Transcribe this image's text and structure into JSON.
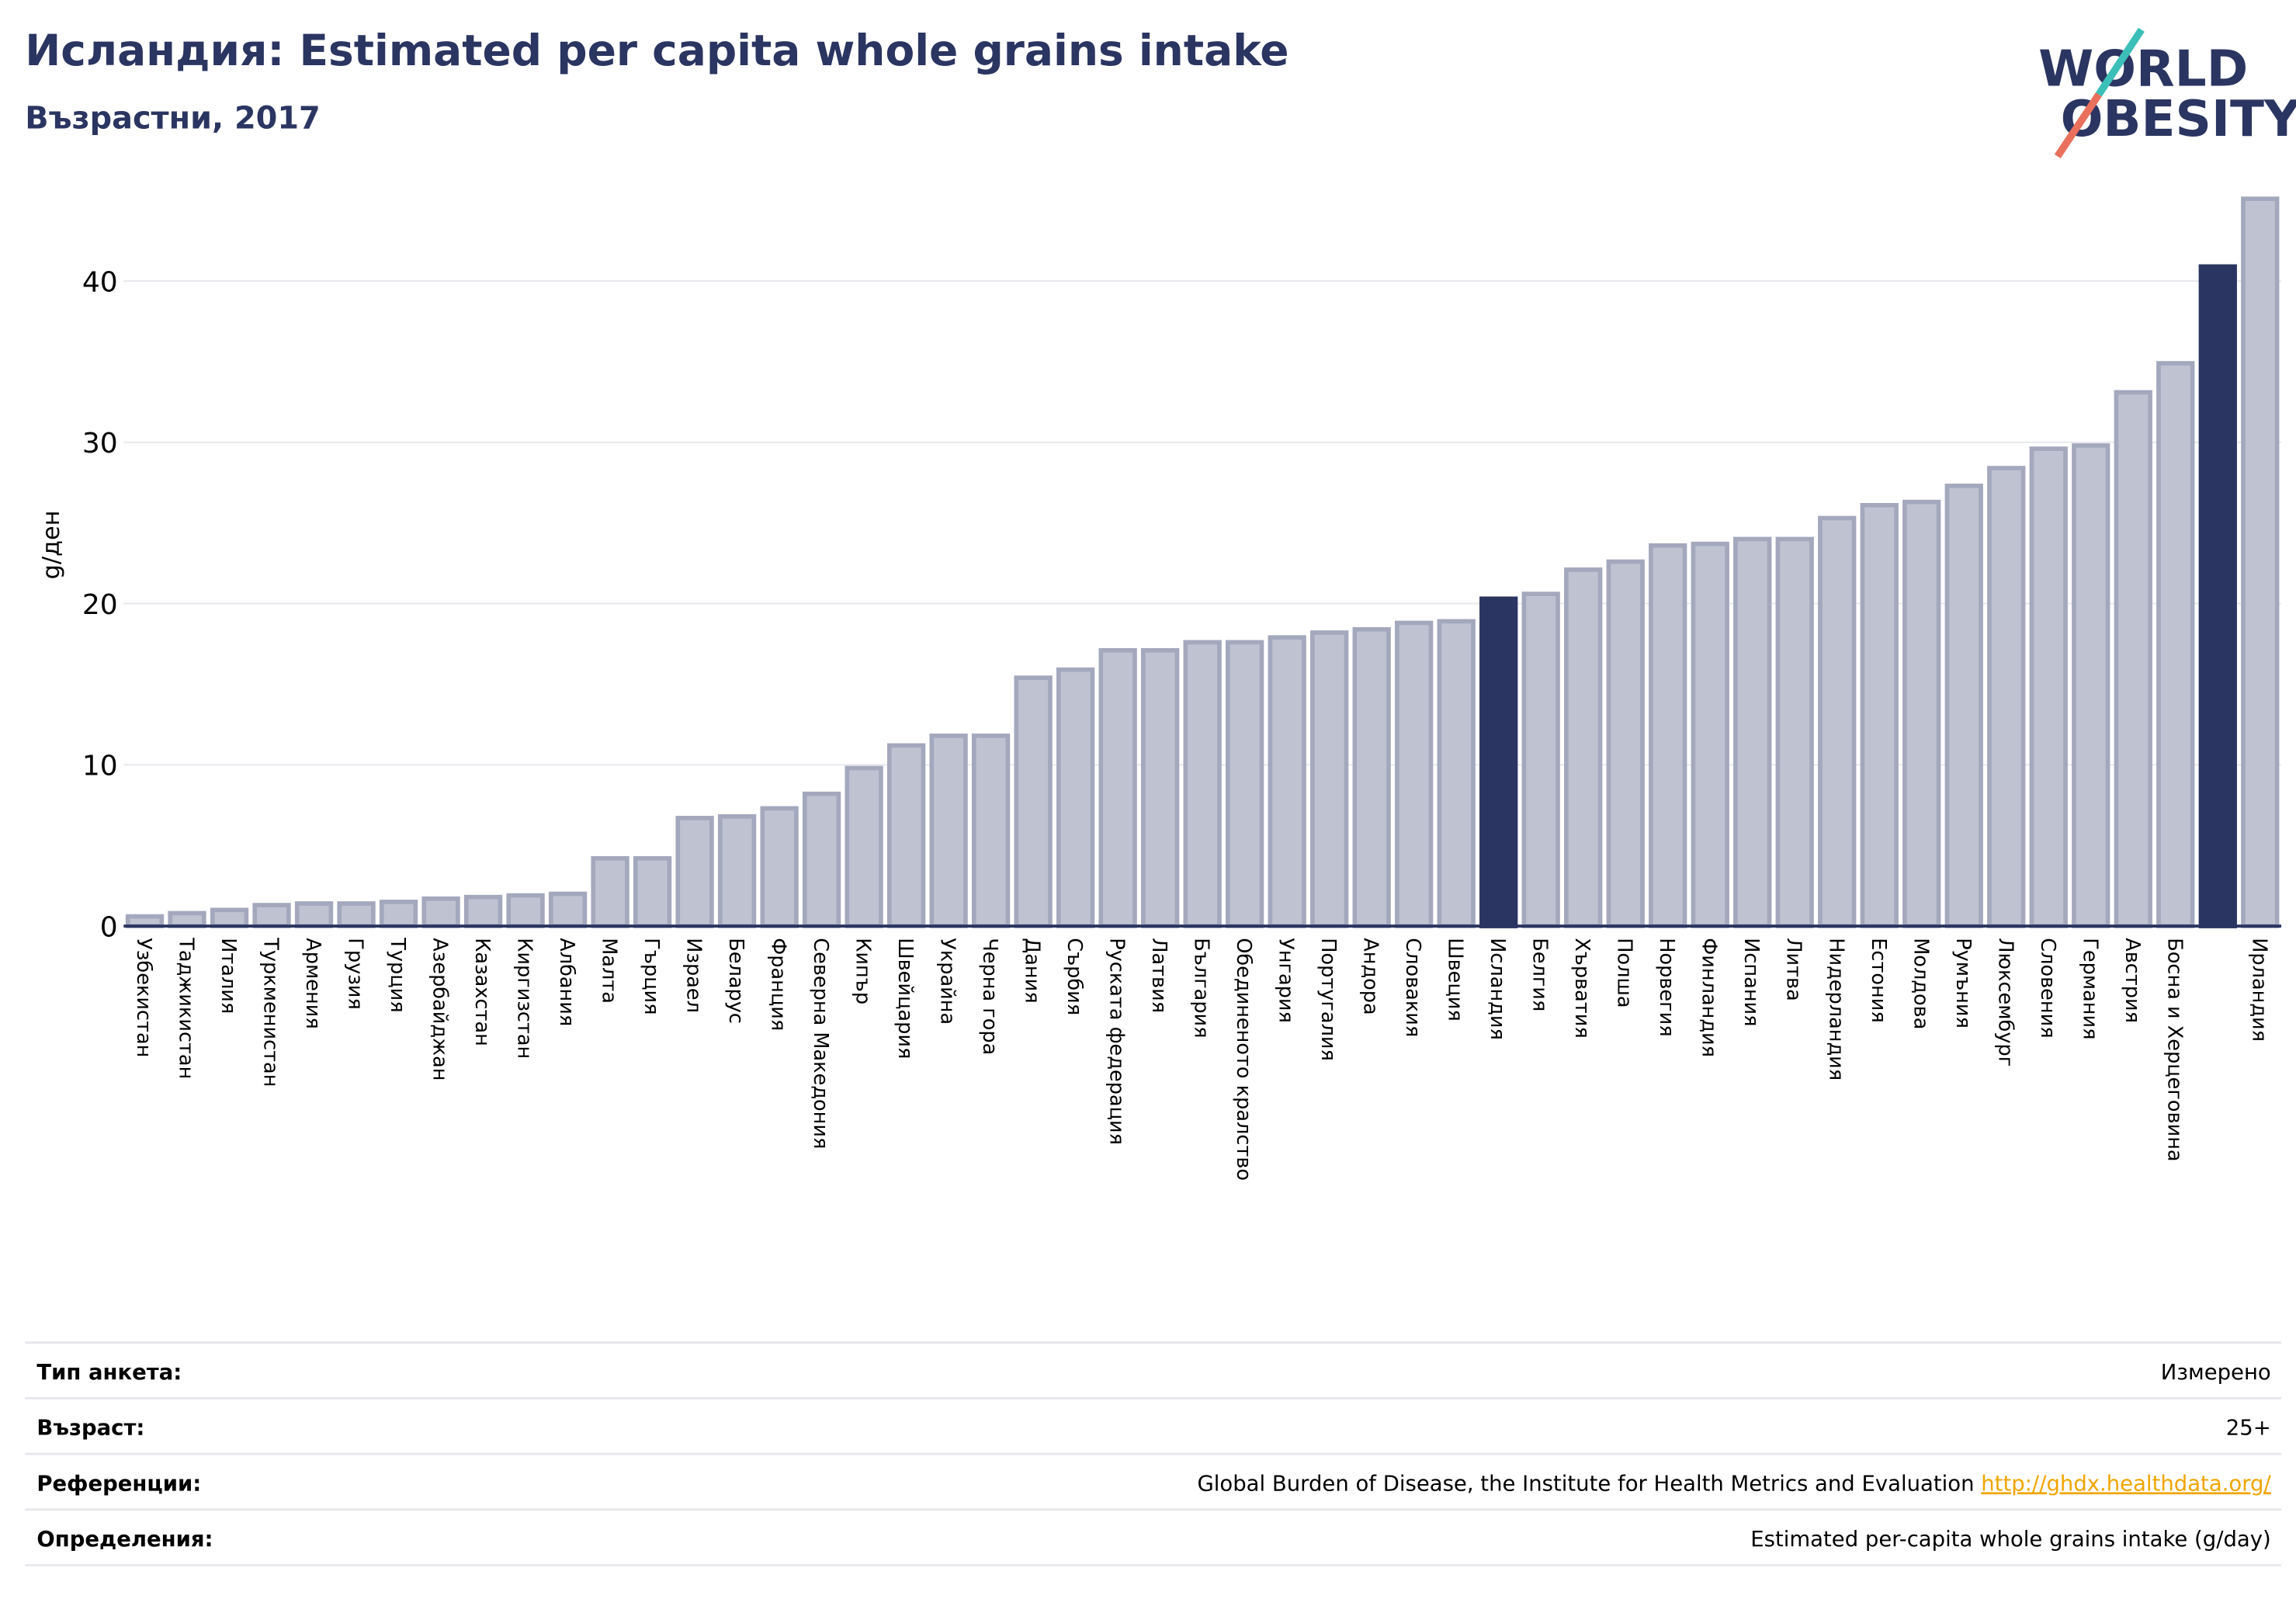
{
  "chart_data": {
    "type": "bar",
    "title": "Исландия: Estimated per capita whole grains intake",
    "subtitle": "Възрастни, 2017",
    "y_label": "g/ден",
    "logo": [
      "WORLD",
      "OBESITY"
    ],
    "categories": [
      "Узбекистан",
      "Таджикистан",
      "Италия",
      "Туркменистан",
      "Армения",
      "Грузия",
      "Турция",
      "Азербайджан",
      "Казахстан",
      "Киргизстан",
      "Албания",
      "Малта",
      "Гърция",
      "Израел",
      "Беларус",
      "Франция",
      "Северна Македония",
      "Кипър",
      "Швейцария",
      "Украйна",
      "Черна гора",
      "Дания",
      "Сърбия",
      "Руската федерация",
      "Латвия",
      "България",
      "Обединеното кралство",
      "Унгария",
      "Португалия",
      "Андора",
      "Словакия",
      "Швеция",
      "Исландия",
      "Белгия",
      "Хърватия",
      "Полша",
      "Норвегия",
      "Финландия",
      "Испания",
      "Литва",
      "Нидерландия",
      "Естония",
      "Молдова",
      "Румъния",
      "Люксембург",
      "Словения",
      "Германия",
      "Австрия",
      "Босна и Херцеговина",
      null,
      "Ирландия"
    ],
    "values": [
      0.6,
      0.8,
      1.0,
      1.3,
      1.4,
      1.4,
      1.5,
      1.7,
      1.8,
      1.9,
      2.0,
      4.2,
      4.2,
      6.7,
      6.8,
      7.3,
      8.2,
      9.8,
      11.2,
      11.8,
      11.8,
      15.4,
      15.9,
      17.1,
      17.1,
      17.6,
      17.6,
      17.9,
      18.2,
      18.4,
      18.8,
      18.9,
      20.3,
      20.6,
      22.1,
      22.6,
      23.6,
      23.7,
      24.0,
      24.0,
      25.3,
      26.1,
      26.3,
      27.3,
      28.4,
      29.6,
      29.8,
      33.1,
      34.9,
      40.9,
      45.1
    ],
    "color": "#bfc3d1",
    "highlight_color": "#2b3561",
    "highlight": [
      32,
      49
    ],
    "ylim": [
      0,
      46
    ],
    "yticks": [
      0,
      10,
      20,
      30,
      40
    ],
    "grid": true
  },
  "info_table": {
    "rows": [
      {
        "label": "Тип анкета:",
        "value": "Измерено"
      },
      {
        "label": "Възраст:",
        "value": "25+"
      },
      {
        "label": "Референции:",
        "value": "Global Burden of Disease, the Institute for Health Metrics and Evaluation",
        "link": "http://ghdx.healthdata.org/"
      },
      {
        "label": "Определения:",
        "value": "Estimated per-capita whole grains intake (g/day)"
      }
    ]
  }
}
